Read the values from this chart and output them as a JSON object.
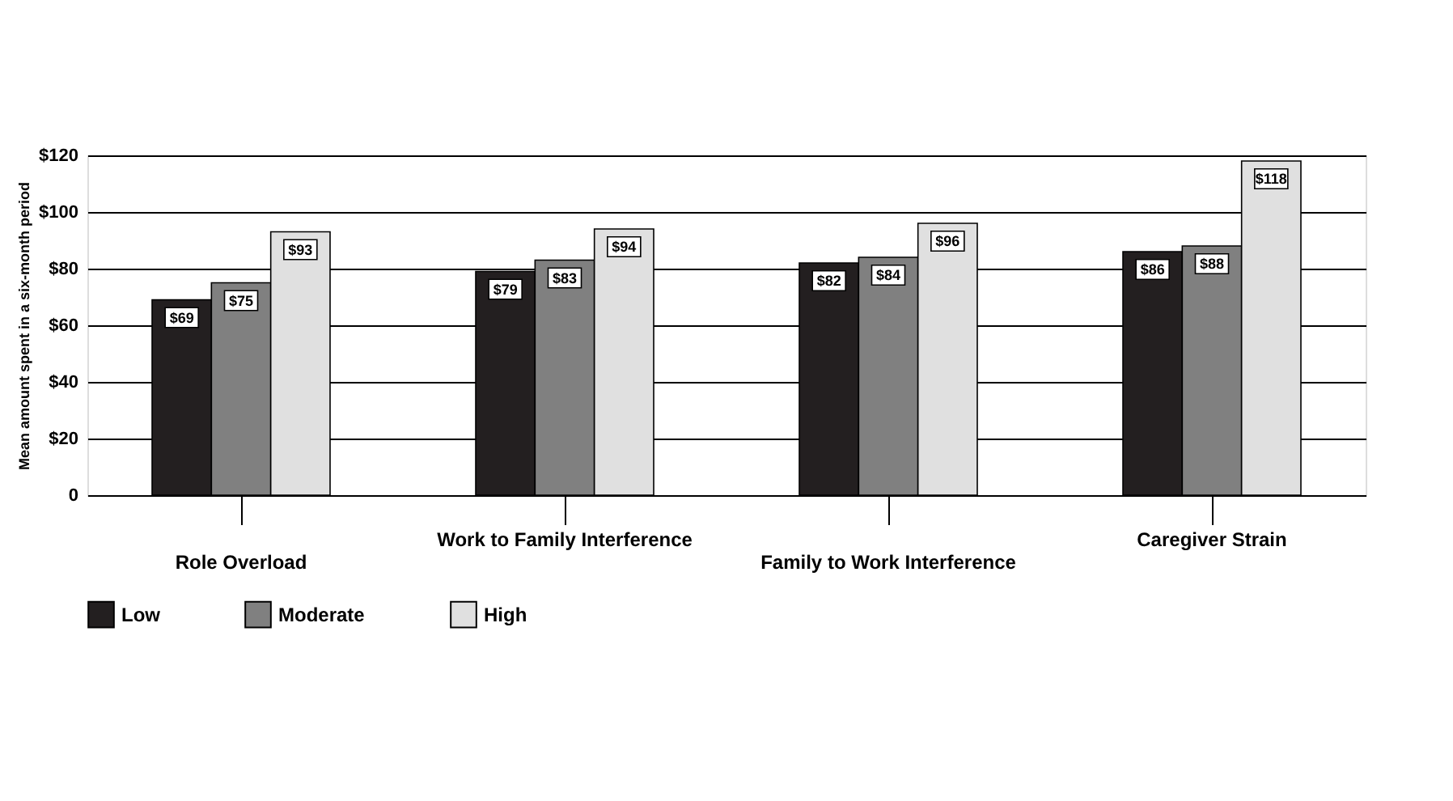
{
  "chart_data": {
    "type": "bar",
    "ylabel": "Mean amount spent in a six-month period",
    "categories": [
      "Role Overload",
      "Work to Family Interference",
      "Family to Work Interference",
      "Caregiver Strain"
    ],
    "series": [
      {
        "name": "Low",
        "color": "#231f20",
        "values": [
          69,
          79,
          82,
          86
        ],
        "value_labels": [
          "$69",
          "$79",
          "$82",
          "$86"
        ]
      },
      {
        "name": "Moderate",
        "color": "#808080",
        "values": [
          75,
          83,
          84,
          88
        ],
        "value_labels": [
          "$75",
          "$83",
          "$84",
          "$88"
        ]
      },
      {
        "name": "High",
        "color": "#e0e0e0",
        "values": [
          93,
          94,
          96,
          118
        ],
        "value_labels": [
          "$93",
          "$94",
          "$96",
          "$118"
        ]
      }
    ],
    "ylim": [
      0,
      120
    ],
    "yticks": [
      0,
      {
        "value": 20,
        "label": "$20"
      },
      {
        "value": 40,
        "label": "$40"
      },
      {
        "value": 60,
        "label": "$60"
      },
      {
        "value": 80,
        "label": "$80"
      },
      {
        "value": 100,
        "label": "$100"
      },
      {
        "value": 120,
        "label": "$120"
      }
    ],
    "grid": "y",
    "legend": "bottom"
  }
}
